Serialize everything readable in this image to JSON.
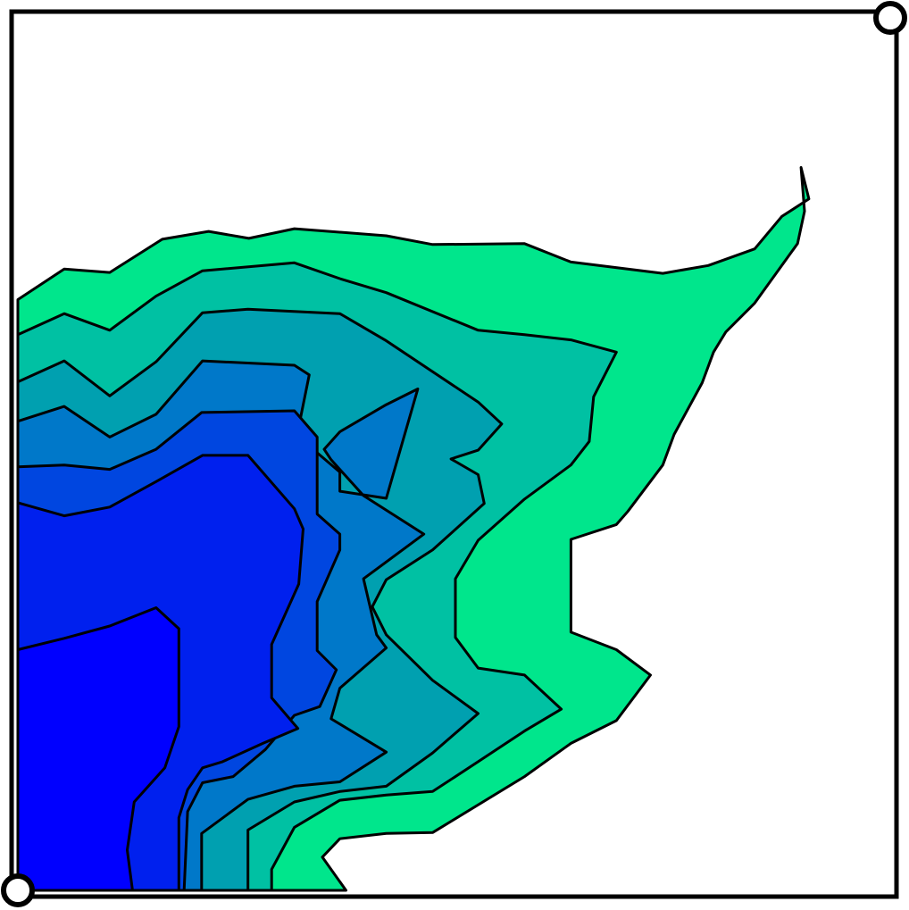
{
  "chart_data": {
    "type": "contour",
    "title": "",
    "xlabel": "",
    "ylabel": "",
    "legend": "none",
    "grid": false,
    "levels": 6,
    "band_colors": [
      "#00e68c",
      "#00c1a3",
      "#00a0b0",
      "#0078c9",
      "#0046e0",
      "#0020ee",
      "#0000ff"
    ],
    "corner_handles": [
      "top-right",
      "bottom-left"
    ],
    "contours": [
      {
        "level": 1,
        "color": "#00e68c",
        "points": [
          [
            0,
            0.675
          ],
          [
            0.053,
            0.71
          ],
          [
            0.105,
            0.706
          ],
          [
            0.165,
            0.744
          ],
          [
            0.218,
            0.753
          ],
          [
            0.264,
            0.745
          ],
          [
            0.316,
            0.756
          ],
          [
            0.421,
            0.748
          ],
          [
            0.474,
            0.738
          ],
          [
            0.579,
            0.739
          ],
          [
            0.632,
            0.718
          ],
          [
            0.737,
            0.705
          ],
          [
            0.789,
            0.714
          ],
          [
            0.842,
            0.733
          ],
          [
            0.873,
            0.77
          ],
          [
            0.904,
            0.79
          ],
          [
            0.895,
            0.826
          ],
          [
            0.899,
            0.776
          ],
          [
            0.891,
            0.739
          ],
          [
            0.842,
            0.671
          ],
          [
            0.809,
            0.638
          ],
          [
            0.795,
            0.615
          ],
          [
            0.782,
            0.58
          ],
          [
            0.75,
            0.521
          ],
          [
            0.737,
            0.486
          ],
          [
            0.697,
            0.433
          ],
          [
            0.684,
            0.418
          ],
          [
            0.632,
            0.401
          ],
          [
            0.632,
            0.295
          ],
          [
            0.684,
            0.275
          ],
          [
            0.723,
            0.246
          ],
          [
            0.684,
            0.194
          ],
          [
            0.632,
            0.168
          ],
          [
            0.579,
            0.13
          ],
          [
            0.474,
            0.066
          ],
          [
            0.421,
            0.065
          ],
          [
            0.368,
            0.059
          ],
          [
            0.348,
            0.038
          ],
          [
            0.375,
            0.0
          ],
          [
            0.316,
            0.0
          ],
          [
            0.0,
            0.0
          ]
        ]
      },
      {
        "level": 2,
        "color": "#00c1a3",
        "points": [
          [
            0,
            0.635
          ],
          [
            0.053,
            0.659
          ],
          [
            0.105,
            0.64
          ],
          [
            0.158,
            0.679
          ],
          [
            0.211,
            0.708
          ],
          [
            0.316,
            0.717
          ],
          [
            0.368,
            0.699
          ],
          [
            0.421,
            0.683
          ],
          [
            0.526,
            0.64
          ],
          [
            0.579,
            0.635
          ],
          [
            0.632,
            0.629
          ],
          [
            0.684,
            0.615
          ],
          [
            0.658,
            0.564
          ],
          [
            0.653,
            0.513
          ],
          [
            0.632,
            0.486
          ],
          [
            0.579,
            0.447
          ],
          [
            0.526,
            0.4
          ],
          [
            0.5,
            0.356
          ],
          [
            0.5,
            0.289
          ],
          [
            0.526,
            0.254
          ],
          [
            0.579,
            0.246
          ],
          [
            0.621,
            0.207
          ],
          [
            0.579,
            0.182
          ],
          [
            0.526,
            0.147
          ],
          [
            0.474,
            0.113
          ],
          [
            0.421,
            0.109
          ],
          [
            0.368,
            0.103
          ],
          [
            0.316,
            0.072
          ],
          [
            0.29,
            0.024
          ],
          [
            0.29,
            0.0
          ],
          [
            0.0,
            0.0
          ]
        ]
      },
      {
        "level": 3,
        "color": "#00a0b0",
        "points": [
          [
            0,
            0.581
          ],
          [
            0.053,
            0.605
          ],
          [
            0.105,
            0.565
          ],
          [
            0.158,
            0.604
          ],
          [
            0.211,
            0.66
          ],
          [
            0.263,
            0.664
          ],
          [
            0.368,
            0.659
          ],
          [
            0.421,
            0.628
          ],
          [
            0.526,
            0.558
          ],
          [
            0.553,
            0.533
          ],
          [
            0.526,
            0.503
          ],
          [
            0.495,
            0.493
          ],
          [
            0.526,
            0.475
          ],
          [
            0.533,
            0.442
          ],
          [
            0.474,
            0.389
          ],
          [
            0.421,
            0.355
          ],
          [
            0.405,
            0.324
          ],
          [
            0.421,
            0.292
          ],
          [
            0.474,
            0.24
          ],
          [
            0.526,
            0.202
          ],
          [
            0.474,
            0.157
          ],
          [
            0.421,
            0.119
          ],
          [
            0.368,
            0.113
          ],
          [
            0.316,
            0.101
          ],
          [
            0.263,
            0.069
          ],
          [
            0.263,
            0.0
          ],
          [
            0.0,
            0.0
          ]
        ]
      },
      {
        "level": 4,
        "color": "#0078c9",
        "points": [
          [
            0,
            0.536
          ],
          [
            0.053,
            0.553
          ],
          [
            0.105,
            0.518
          ],
          [
            0.158,
            0.544
          ],
          [
            0.211,
            0.605
          ],
          [
            0.316,
            0.6
          ],
          [
            0.333,
            0.589
          ],
          [
            0.322,
            0.535
          ],
          [
            0.342,
            0.5
          ],
          [
            0.368,
            0.478
          ],
          [
            0.368,
            0.456
          ],
          [
            0.421,
            0.448
          ],
          [
            0.457,
            0.573
          ],
          [
            0.421,
            0.555
          ],
          [
            0.368,
            0.524
          ],
          [
            0.35,
            0.504
          ],
          [
            0.358,
            0.492
          ],
          [
            0.395,
            0.451
          ],
          [
            0.464,
            0.407
          ],
          [
            0.395,
            0.356
          ],
          [
            0.41,
            0.292
          ],
          [
            0.421,
            0.277
          ],
          [
            0.368,
            0.231
          ],
          [
            0.358,
            0.196
          ],
          [
            0.421,
            0.158
          ],
          [
            0.368,
            0.124
          ],
          [
            0.316,
            0.119
          ],
          [
            0.263,
            0.104
          ],
          [
            0.21,
            0.065
          ],
          [
            0.21,
            0.0
          ],
          [
            0.0,
            0.0
          ]
        ]
      },
      {
        "level": 5,
        "color": "#0046e0",
        "points": [
          [
            0,
            0.484
          ],
          [
            0.053,
            0.486
          ],
          [
            0.105,
            0.481
          ],
          [
            0.158,
            0.504
          ],
          [
            0.21,
            0.546
          ],
          [
            0.316,
            0.548
          ],
          [
            0.342,
            0.518
          ],
          [
            0.342,
            0.43
          ],
          [
            0.368,
            0.407
          ],
          [
            0.368,
            0.389
          ],
          [
            0.342,
            0.33
          ],
          [
            0.342,
            0.274
          ],
          [
            0.364,
            0.252
          ],
          [
            0.345,
            0.21
          ],
          [
            0.316,
            0.2
          ],
          [
            0.283,
            0.161
          ],
          [
            0.246,
            0.13
          ],
          [
            0.211,
            0.123
          ],
          [
            0.194,
            0.09
          ],
          [
            0.19,
            0.0
          ],
          [
            0.0,
            0.0
          ]
        ]
      },
      {
        "level": 6,
        "color": "#0020ee",
        "points": [
          [
            0,
            0.443
          ],
          [
            0.053,
            0.428
          ],
          [
            0.105,
            0.438
          ],
          [
            0.158,
            0.467
          ],
          [
            0.211,
            0.497
          ],
          [
            0.263,
            0.497
          ],
          [
            0.316,
            0.436
          ],
          [
            0.326,
            0.413
          ],
          [
            0.321,
            0.35
          ],
          [
            0.29,
            0.281
          ],
          [
            0.29,
            0.22
          ],
          [
            0.32,
            0.185
          ],
          [
            0.28,
            0.168
          ],
          [
            0.234,
            0.147
          ],
          [
            0.211,
            0.14
          ],
          [
            0.194,
            0.115
          ],
          [
            0.184,
            0.083
          ],
          [
            0.184,
            0.0
          ],
          [
            0.0,
            0.0
          ]
        ]
      },
      {
        "level": 7,
        "color": "#0000ff",
        "points": [
          [
            0,
            0.275
          ],
          [
            0.053,
            0.288
          ],
          [
            0.105,
            0.302
          ],
          [
            0.158,
            0.323
          ],
          [
            0.184,
            0.299
          ],
          [
            0.184,
            0.219
          ],
          [
            0.184,
            0.187
          ],
          [
            0.168,
            0.14
          ],
          [
            0.133,
            0.101
          ],
          [
            0.125,
            0.046
          ],
          [
            0.131,
            0.0
          ],
          [
            0.0,
            0.0
          ]
        ]
      }
    ]
  }
}
